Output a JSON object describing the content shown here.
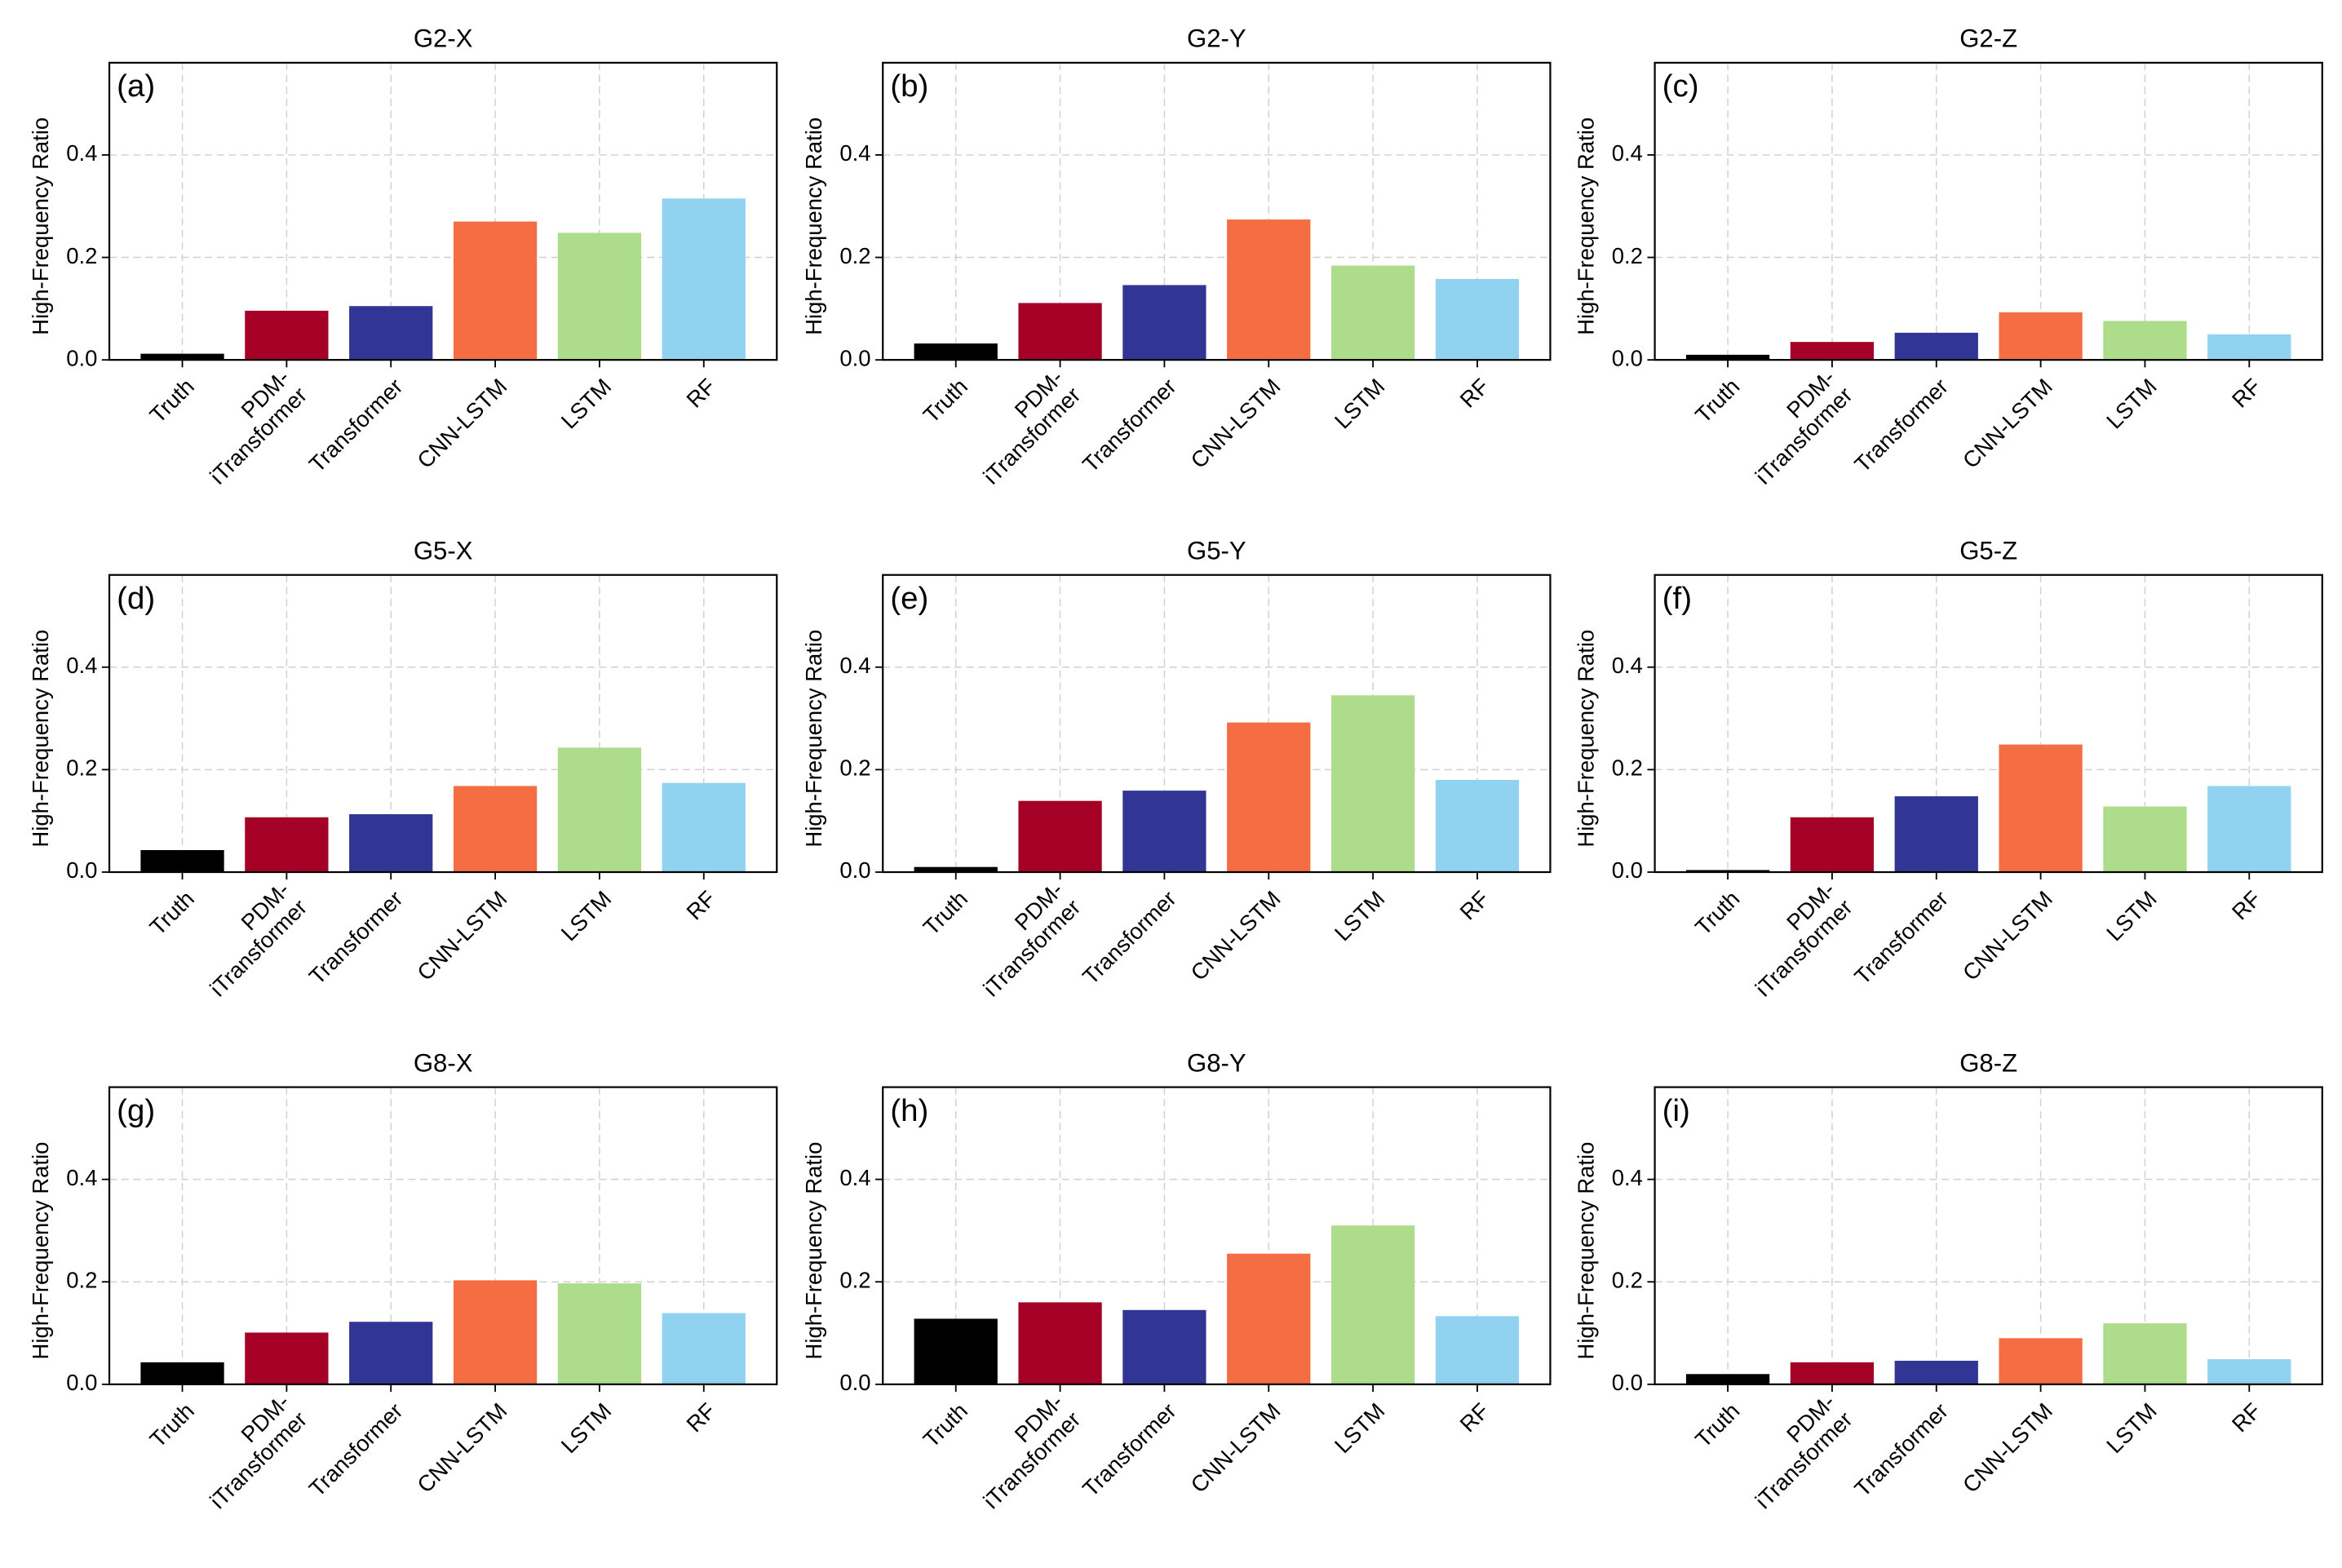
{
  "chart_data": [
    {
      "type": "bar",
      "title": "G2-X",
      "panel_label": "(a)",
      "ylabel": "High-Frequency Ratio",
      "categories": [
        "Truth",
        "PDM-\niTransformer",
        "Transformer",
        "CNN-LSTM",
        "LSTM",
        "RF"
      ],
      "values": [
        0.012,
        0.096,
        0.105,
        0.27,
        0.248,
        0.315
      ],
      "colors": [
        "#000000",
        "#a50026",
        "#313695",
        "#f46d43",
        "#addc8a",
        "#91d2f0"
      ],
      "ylim": [
        0,
        0.58
      ],
      "yticks": [
        {
          "value": 0,
          "label": "0.0"
        },
        0.2,
        0.4
      ],
      "grid": true
    },
    {
      "type": "bar",
      "title": "G2-Y",
      "panel_label": "(b)",
      "ylabel": "High-Frequency Ratio",
      "categories": [
        "Truth",
        "PDM-\niTransformer",
        "Transformer",
        "CNN-LSTM",
        "LSTM",
        "RF"
      ],
      "values": [
        0.032,
        0.111,
        0.146,
        0.274,
        0.184,
        0.158
      ],
      "colors": [
        "#000000",
        "#a50026",
        "#313695",
        "#f46d43",
        "#addc8a",
        "#91d2f0"
      ],
      "ylim": [
        0,
        0.58
      ],
      "yticks": [
        {
          "value": 0,
          "label": "0.0"
        },
        0.2,
        0.4
      ],
      "grid": true
    },
    {
      "type": "bar",
      "title": "G2-Z",
      "panel_label": "(c)",
      "ylabel": "High-Frequency Ratio",
      "categories": [
        "Truth",
        "PDM-\niTransformer",
        "Transformer",
        "CNN-LSTM",
        "LSTM",
        "RF"
      ],
      "values": [
        0.01,
        0.035,
        0.053,
        0.093,
        0.076,
        0.05
      ],
      "colors": [
        "#000000",
        "#a50026",
        "#313695",
        "#f46d43",
        "#addc8a",
        "#91d2f0"
      ],
      "ylim": [
        0,
        0.58
      ],
      "yticks": [
        {
          "value": 0,
          "label": "0.0"
        },
        0.2,
        0.4
      ],
      "grid": true
    },
    {
      "type": "bar",
      "title": "G5-X",
      "panel_label": "(d)",
      "ylabel": "High-Frequency Ratio",
      "categories": [
        "Truth",
        "PDM-\niTransformer",
        "Transformer",
        "CNN-LSTM",
        "LSTM",
        "RF"
      ],
      "values": [
        0.043,
        0.107,
        0.113,
        0.168,
        0.243,
        0.174
      ],
      "colors": [
        "#000000",
        "#a50026",
        "#313695",
        "#f46d43",
        "#addc8a",
        "#91d2f0"
      ],
      "ylim": [
        0,
        0.58
      ],
      "yticks": [
        {
          "value": 0,
          "label": "0.0"
        },
        0.2,
        0.4
      ],
      "grid": true
    },
    {
      "type": "bar",
      "title": "G5-Y",
      "panel_label": "(e)",
      "ylabel": "High-Frequency Ratio",
      "categories": [
        "Truth",
        "PDM-\niTransformer",
        "Transformer",
        "CNN-LSTM",
        "LSTM",
        "RF"
      ],
      "values": [
        0.01,
        0.139,
        0.159,
        0.292,
        0.345,
        0.18
      ],
      "colors": [
        "#000000",
        "#a50026",
        "#313695",
        "#f46d43",
        "#addc8a",
        "#91d2f0"
      ],
      "ylim": [
        0,
        0.58
      ],
      "yticks": [
        {
          "value": 0,
          "label": "0.0"
        },
        0.2,
        0.4
      ],
      "grid": true
    },
    {
      "type": "bar",
      "title": "G5-Z",
      "panel_label": "(f)",
      "ylabel": "High-Frequency Ratio",
      "categories": [
        "Truth",
        "PDM-\niTransformer",
        "Transformer",
        "CNN-LSTM",
        "LSTM",
        "RF"
      ],
      "values": [
        0.004,
        0.107,
        0.148,
        0.249,
        0.128,
        0.168
      ],
      "colors": [
        "#000000",
        "#a50026",
        "#313695",
        "#f46d43",
        "#addc8a",
        "#91d2f0"
      ],
      "ylim": [
        0,
        0.58
      ],
      "yticks": [
        {
          "value": 0,
          "label": "0.0"
        },
        0.2,
        0.4
      ],
      "grid": true
    },
    {
      "type": "bar",
      "title": "G8-X",
      "panel_label": "(g)",
      "ylabel": "High-Frequency Ratio",
      "categories": [
        "Truth",
        "PDM-\niTransformer",
        "Transformer",
        "CNN-LSTM",
        "LSTM",
        "RF"
      ],
      "values": [
        0.043,
        0.101,
        0.122,
        0.203,
        0.197,
        0.139
      ],
      "colors": [
        "#000000",
        "#a50026",
        "#313695",
        "#f46d43",
        "#addc8a",
        "#91d2f0"
      ],
      "ylim": [
        0,
        0.58
      ],
      "yticks": [
        {
          "value": 0,
          "label": "0.0"
        },
        0.2,
        0.4
      ],
      "grid": true
    },
    {
      "type": "bar",
      "title": "G8-Y",
      "panel_label": "(h)",
      "ylabel": "High-Frequency Ratio",
      "categories": [
        "Truth",
        "PDM-\niTransformer",
        "Transformer",
        "CNN-LSTM",
        "LSTM",
        "RF"
      ],
      "values": [
        0.128,
        0.16,
        0.145,
        0.255,
        0.31,
        0.133
      ],
      "colors": [
        "#000000",
        "#a50026",
        "#313695",
        "#f46d43",
        "#addc8a",
        "#91d2f0"
      ],
      "ylim": [
        0,
        0.58
      ],
      "yticks": [
        {
          "value": 0,
          "label": "0.0"
        },
        0.2,
        0.4
      ],
      "grid": true
    },
    {
      "type": "bar",
      "title": "G8-Z",
      "panel_label": "(i)",
      "ylabel": "High-Frequency Ratio",
      "categories": [
        "Truth",
        "PDM-\niTransformer",
        "Transformer",
        "CNN-LSTM",
        "LSTM",
        "RF"
      ],
      "values": [
        0.02,
        0.043,
        0.046,
        0.09,
        0.119,
        0.049
      ],
      "colors": [
        "#000000",
        "#a50026",
        "#313695",
        "#f46d43",
        "#addc8a",
        "#91d2f0"
      ],
      "ylim": [
        0,
        0.58
      ],
      "yticks": [
        {
          "value": 0,
          "label": "0.0"
        },
        0.2,
        0.4
      ],
      "grid": true
    }
  ]
}
